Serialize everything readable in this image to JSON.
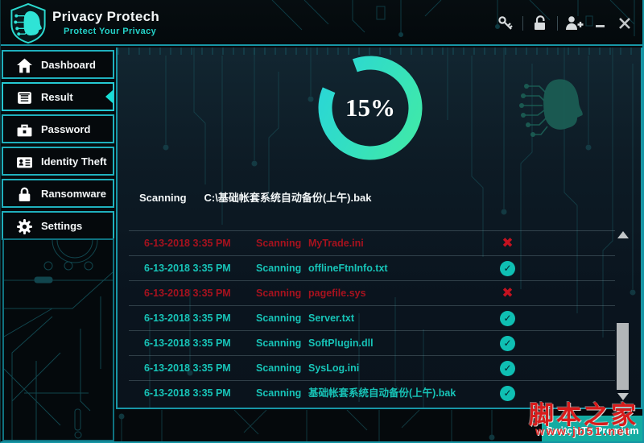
{
  "header": {
    "app_name": "Privacy Protech",
    "tagline": "Protect Your Privacy",
    "window_controls": {
      "minimize": "minimize",
      "close": "close"
    },
    "tool_icons": [
      "key-icon",
      "unlock-icon",
      "add-user-icon"
    ]
  },
  "sidebar": {
    "items": [
      {
        "label": "Dashboard",
        "icon": "home-icon",
        "active": false
      },
      {
        "label": "Result",
        "icon": "list-icon",
        "active": true
      },
      {
        "label": "Password",
        "icon": "briefcase-icon",
        "active": false
      },
      {
        "label": "Identity Theft",
        "icon": "id-card-icon",
        "active": false
      },
      {
        "label": "Ransomware",
        "icon": "padlock-icon",
        "active": false
      },
      {
        "label": "Settings",
        "icon": "gear-icon",
        "active": false
      }
    ]
  },
  "main": {
    "progress": {
      "percent": "15%"
    },
    "scanning": {
      "label": "Scanning",
      "path": "C:\\基础帐套系统自动备份(上午).bak"
    },
    "table": {
      "rows": [
        {
          "time": "6-13-2018 3:35 PM",
          "action": "Scanning",
          "file": "MyTrade.ini",
          "status": "error"
        },
        {
          "time": "6-13-2018 3:35 PM",
          "action": "Scanning",
          "file": "offlineFtnInfo.txt",
          "status": "ok"
        },
        {
          "time": "6-13-2018 3:35 PM",
          "action": "Scanning",
          "file": "pagefile.sys",
          "status": "error"
        },
        {
          "time": "6-13-2018 3:35 PM",
          "action": "Scanning",
          "file": "Server.txt",
          "status": "ok"
        },
        {
          "time": "6-13-2018 3:35 PM",
          "action": "Scanning",
          "file": "SoftPlugin.dll",
          "status": "ok"
        },
        {
          "time": "6-13-2018 3:35 PM",
          "action": "Scanning",
          "file": "SysLog.ini",
          "status": "ok"
        },
        {
          "time": "6-13-2018 3:35 PM",
          "action": "Scanning",
          "file": "基础帐套系统自动备份(上午).bak",
          "status": "ok"
        }
      ]
    }
  },
  "footer": {
    "premium_label": "Switch To Premium"
  },
  "watermark": {
    "title": "脚本之家",
    "url": "www.jb51.net"
  },
  "colors": {
    "accent": "#1fb0bd",
    "ring_start": "#41eaa6",
    "ring_end": "#28d5d9",
    "ok": "#0fbfb3",
    "error": "#c41220",
    "premium_bg": "#14aca2",
    "watermark_red": "#d81b1b"
  }
}
